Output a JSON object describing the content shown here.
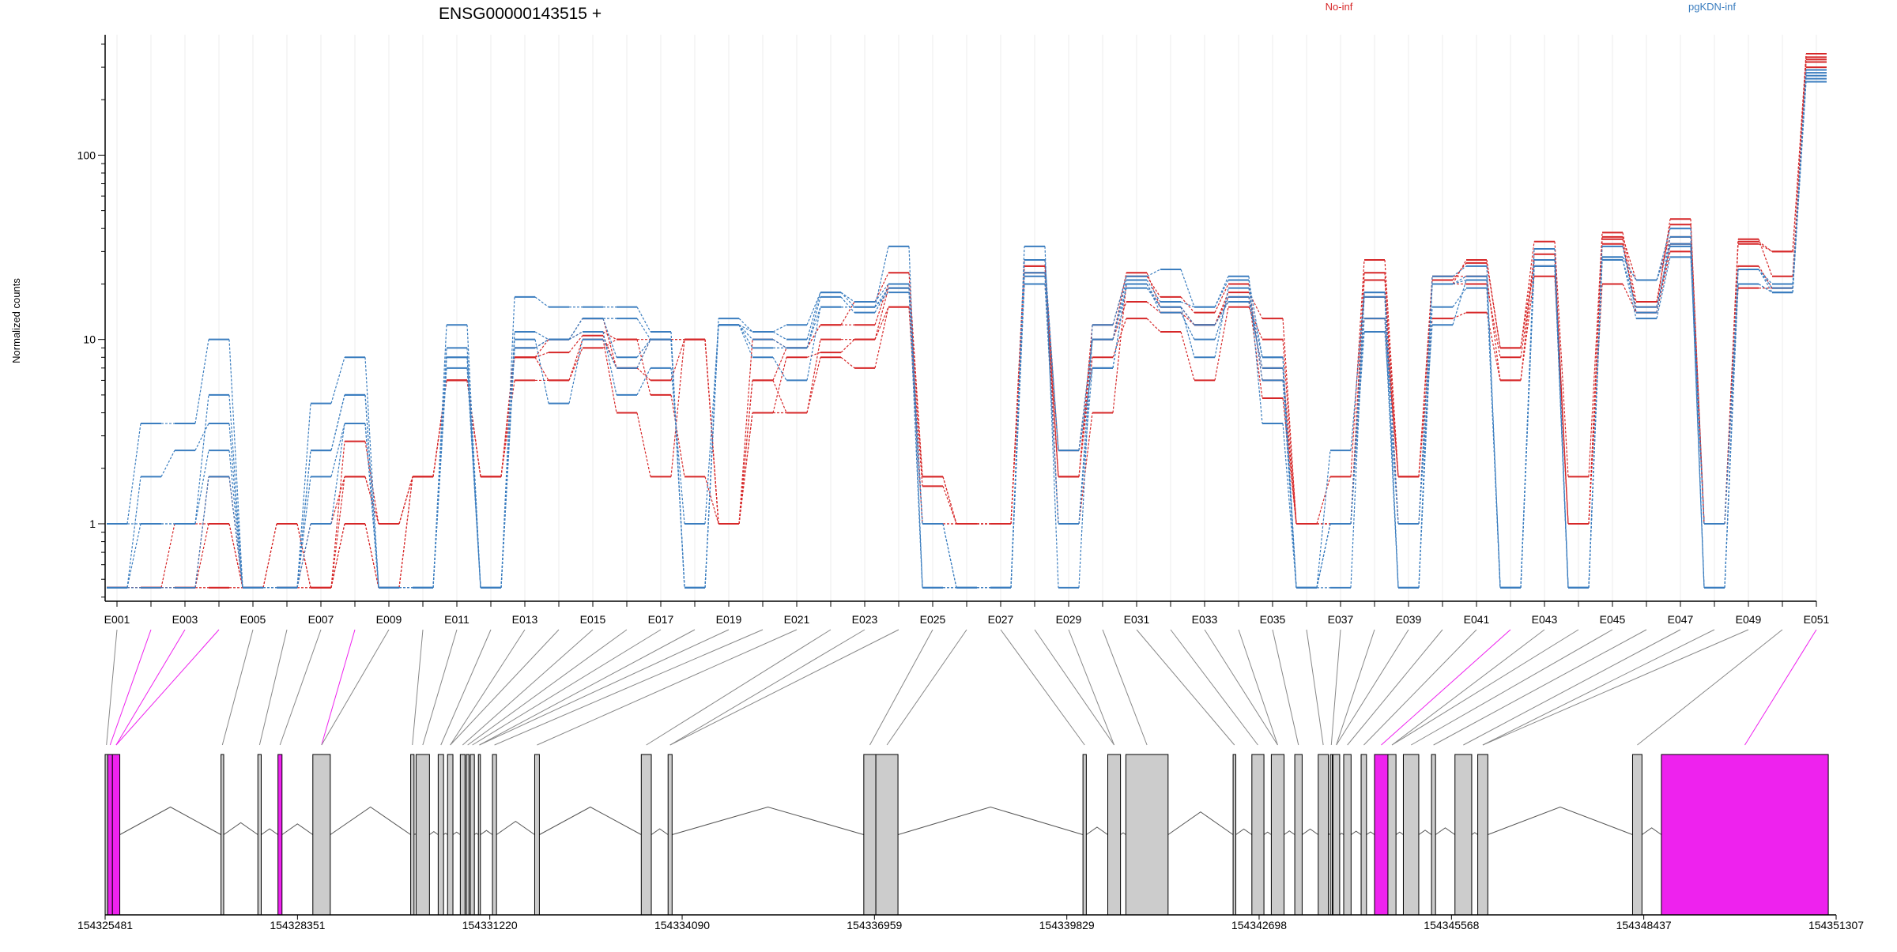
{
  "chart_data": {
    "type": "line",
    "title": "ENSG00000143515 +",
    "ylabel": "Normalized counts",
    "y_scale": "log",
    "ylim": [
      0.38,
      450
    ],
    "y_ticks": [
      1,
      10,
      100
    ],
    "y_tick_labels": [
      "1",
      "10",
      "100"
    ],
    "legend": [
      {
        "name": "No-inf",
        "color": "#d62728"
      },
      {
        "name": "pgKDN-inf",
        "color": "#3a7dbf"
      }
    ],
    "colors": {
      "no_inf": "#d62728",
      "pgkdn_inf": "#3a7dbf",
      "gene_fill": "#cccccc",
      "highlight": "#ee22ee"
    },
    "exons": [
      "E001",
      "E002",
      "E003",
      "E004",
      "E005",
      "E006",
      "E007",
      "E008",
      "E009",
      "E010",
      "E011",
      "E012",
      "E013",
      "E014",
      "E015",
      "E016",
      "E017",
      "E018",
      "E019",
      "E020",
      "E021",
      "E022",
      "E023",
      "E024",
      "E025",
      "E026",
      "E027",
      "E028",
      "E029",
      "E030",
      "E031",
      "E032",
      "E033",
      "E034",
      "E035",
      "E036",
      "E037",
      "E038",
      "E039",
      "E040",
      "E041",
      "E042",
      "E043",
      "E044",
      "E045",
      "E046",
      "E047",
      "E048",
      "E049",
      "E050",
      "E051"
    ],
    "exon_tick_labels": [
      "E001",
      "E003",
      "E005",
      "E007",
      "E009",
      "E011",
      "E013",
      "E015",
      "E017",
      "E019",
      "E021",
      "E023",
      "E025",
      "E027",
      "E029",
      "E031",
      "E033",
      "E035",
      "E037",
      "E039",
      "E041",
      "E043",
      "E045",
      "E047",
      "E049",
      "E051"
    ],
    "highlighted_exons": [
      "E002",
      "E003",
      "E004",
      "E008",
      "E042",
      "E051"
    ],
    "series": [
      {
        "group": "No-inf",
        "values": [
          0.45,
          0.45,
          0.45,
          0.45,
          0.45,
          0.45,
          0.45,
          1.8,
          1.0,
          1.8,
          6.0,
          1.8,
          8.0,
          8.5,
          10.5,
          7.0,
          6.0,
          10.0,
          1.0,
          4.0,
          8.0,
          8.5,
          10.0,
          15.0,
          1.6,
          1.0,
          1.0,
          25.0,
          2.5,
          10.0,
          16.0,
          14.0,
          12.0,
          17.0,
          4.8,
          1.0,
          1.0,
          17.0,
          1.8,
          20.0,
          20.0,
          8.0,
          25.0,
          1.0,
          35.0,
          14.0,
          33.0,
          1.0,
          25.0,
          19.0,
          330.0
        ]
      },
      {
        "group": "No-inf",
        "values": [
          0.45,
          0.45,
          0.45,
          1.0,
          0.45,
          0.45,
          0.45,
          1.0,
          0.45,
          1.8,
          6.0,
          1.8,
          8.0,
          6.0,
          10.0,
          4.0,
          1.8,
          10.0,
          1.0,
          4.0,
          4.0,
          8.0,
          7.0,
          15.0,
          1.0,
          1.0,
          1.0,
          20.0,
          1.8,
          8.0,
          13.0,
          11.0,
          6.0,
          15.0,
          10.0,
          1.0,
          1.0,
          13.0,
          1.8,
          13.0,
          14.0,
          6.0,
          22.0,
          1.0,
          20.0,
          14.0,
          30.0,
          1.0,
          19.0,
          19.0,
          300.0
        ]
      },
      {
        "group": "No-inf",
        "values": [
          0.45,
          0.45,
          0.45,
          1.8,
          0.45,
          1.0,
          0.45,
          2.8,
          1.0,
          1.8,
          6.0,
          1.8,
          8.0,
          10.0,
          11.0,
          10.0,
          5.0,
          1.8,
          1.0,
          6.0,
          4.0,
          10.0,
          10.0,
          19.0,
          1.8,
          1.0,
          1.0,
          27.0,
          1.0,
          4.0,
          20.0,
          15.0,
          12.0,
          18.0,
          13.0,
          1.0,
          1.8,
          27.0,
          1.8,
          20.0,
          27.0,
          9.0,
          34.0,
          1.8,
          38.0,
          16.0,
          42.0,
          1.0,
          35.0,
          22.0,
          340.0
        ]
      },
      {
        "group": "No-inf",
        "values": [
          0.45,
          0.45,
          1.0,
          1.0,
          0.45,
          0.45,
          1.0,
          1.8,
          1.0,
          1.8,
          6.0,
          1.8,
          9.0,
          10.0,
          13.0,
          7.0,
          10.0,
          10.0,
          1.0,
          10.0,
          9.0,
          12.0,
          12.0,
          20.0,
          1.0,
          1.0,
          1.0,
          23.0,
          1.8,
          12.0,
          22.0,
          17.0,
          14.0,
          20.0,
          6.0,
          1.0,
          1.0,
          21.0,
          1.8,
          22.0,
          22.0,
          6.0,
          29.0,
          1.0,
          33.0,
          15.0,
          45.0,
          1.0,
          34.0,
          30.0,
          355.0
        ]
      },
      {
        "group": "No-inf",
        "values": [
          0.45,
          0.45,
          0.45,
          0.45,
          0.45,
          1.0,
          0.45,
          1.0,
          0.45,
          1.8,
          6.0,
          1.8,
          6.0,
          6.0,
          9.0,
          10.0,
          10.0,
          10.0,
          1.0,
          6.0,
          9.0,
          12.0,
          16.0,
          23.0,
          1.8,
          1.0,
          1.0,
          25.0,
          1.8,
          10.0,
          23.0,
          15.0,
          12.0,
          16.0,
          7.0,
          1.0,
          1.0,
          23.0,
          1.0,
          21.0,
          26.0,
          9.0,
          27.0,
          1.0,
          36.0,
          21.0,
          36.0,
          1.0,
          33.0,
          30.0,
          320.0
        ]
      },
      {
        "group": "pgKDN-inf",
        "values": [
          1.0,
          3.5,
          3.5,
          10.0,
          0.45,
          0.45,
          4.5,
          8.0,
          0.45,
          0.45,
          12.0,
          0.45,
          17.0,
          15.0,
          15.0,
          15.0,
          11.0,
          0.45,
          13.0,
          11.0,
          12.0,
          18.0,
          15.0,
          32.0,
          0.45,
          0.45,
          0.45,
          32.0,
          0.45,
          12.0,
          22.0,
          24.0,
          15.0,
          22.0,
          3.5,
          0.45,
          2.5,
          18.0,
          0.45,
          22.0,
          25.0,
          0.45,
          31.0,
          0.45,
          28.0,
          21.0,
          40.0,
          0.45,
          24.0,
          19.0,
          270.0
        ]
      },
      {
        "group": "pgKDN-inf",
        "values": [
          0.45,
          1.0,
          1.0,
          2.5,
          0.45,
          0.45,
          1.0,
          3.5,
          0.45,
          0.45,
          8.0,
          0.45,
          10.0,
          4.5,
          10.0,
          7.0,
          10.0,
          0.45,
          12.0,
          8.0,
          6.0,
          15.0,
          15.0,
          19.0,
          1.0,
          0.45,
          0.45,
          22.0,
          1.0,
          10.0,
          19.0,
          15.0,
          8.0,
          19.0,
          6.0,
          0.45,
          1.0,
          13.0,
          0.45,
          15.0,
          19.0,
          0.45,
          27.0,
          0.45,
          27.0,
          15.0,
          32.0,
          0.45,
          20.0,
          18.0,
          290.0
        ]
      },
      {
        "group": "pgKDN-inf",
        "values": [
          1.0,
          1.0,
          1.0,
          5.0,
          0.45,
          0.45,
          2.5,
          5.0,
          0.45,
          0.45,
          9.0,
          0.45,
          11.0,
          10.0,
          13.0,
          13.0,
          10.0,
          0.45,
          12.0,
          10.0,
          9.0,
          17.0,
          14.0,
          19.0,
          0.45,
          0.45,
          0.45,
          23.0,
          2.5,
          10.0,
          21.0,
          16.0,
          15.0,
          21.0,
          8.0,
          0.45,
          0.45,
          18.0,
          1.0,
          20.0,
          21.0,
          0.45,
          25.0,
          0.45,
          32.0,
          14.0,
          36.0,
          1.0,
          24.0,
          18.0,
          260.0
        ]
      },
      {
        "group": "pgKDN-inf",
        "values": [
          0.45,
          0.45,
          0.45,
          1.8,
          0.45,
          0.45,
          1.8,
          3.5,
          0.45,
          0.45,
          7.0,
          0.45,
          9.0,
          10.0,
          11.0,
          5.0,
          7.0,
          1.0,
          12.0,
          9.0,
          9.0,
          15.0,
          15.0,
          18.0,
          1.0,
          0.45,
          0.45,
          20.0,
          1.0,
          7.0,
          20.0,
          15.0,
          12.0,
          16.0,
          7.0,
          0.45,
          1.0,
          11.0,
          1.0,
          12.0,
          21.0,
          0.45,
          25.0,
          0.45,
          27.0,
          13.0,
          28.0,
          1.0,
          20.0,
          18.0,
          250.0
        ]
      },
      {
        "group": "pgKDN-inf",
        "values": [
          0.45,
          1.8,
          2.5,
          3.5,
          0.45,
          0.45,
          2.5,
          5.0,
          0.45,
          0.45,
          8.0,
          0.45,
          9.0,
          10.0,
          13.0,
          8.0,
          10.0,
          0.45,
          12.0,
          11.0,
          10.0,
          18.0,
          16.0,
          20.0,
          0.45,
          0.45,
          0.45,
          27.0,
          2.5,
          7.0,
          20.0,
          14.0,
          10.0,
          17.0,
          8.0,
          0.45,
          1.0,
          17.0,
          0.45,
          20.0,
          22.0,
          0.45,
          25.0,
          0.45,
          28.0,
          21.0,
          33.0,
          0.45,
          24.0,
          20.0,
          280.0
        ]
      }
    ],
    "gene_model": {
      "genomic_range": [
        154325481,
        154351307
      ],
      "coordinate_ticks": [
        "154325481",
        "154328351",
        "154331220",
        "154334090",
        "154336959",
        "154339829",
        "154342698",
        "154345568",
        "154348437",
        "154351307"
      ],
      "exon_boxes": [
        [
          154325481,
          154325521,
          "normal"
        ],
        [
          154325521,
          154325590,
          "highlight"
        ],
        [
          154325590,
          154325700,
          "highlight"
        ],
        [
          154327210,
          154327250,
          "normal"
        ],
        [
          154327760,
          154327810,
          "normal"
        ],
        [
          154328060,
          154328120,
          "highlight"
        ],
        [
          154328580,
          154328840,
          "normal"
        ],
        [
          154330040,
          154330090,
          "normal"
        ],
        [
          154330120,
          154330320,
          "normal"
        ],
        [
          154330450,
          154330530,
          "normal"
        ],
        [
          154330590,
          154330670,
          "normal"
        ],
        [
          154330780,
          154330850,
          "normal"
        ],
        [
          154330870,
          154330910,
          "normal"
        ],
        [
          154330930,
          154330990,
          "normal"
        ],
        [
          154331050,
          154331080,
          "normal"
        ],
        [
          154331260,
          154331320,
          "normal"
        ],
        [
          154331890,
          154331960,
          "normal"
        ],
        [
          154333480,
          154333630,
          "normal"
        ],
        [
          154333880,
          154333940,
          "normal"
        ],
        [
          154336800,
          154336980,
          "normal"
        ],
        [
          154336980,
          154337310,
          "normal"
        ],
        [
          154340070,
          154340120,
          "normal"
        ],
        [
          154340440,
          154340630,
          "normal"
        ],
        [
          154340710,
          154341340,
          "normal"
        ],
        [
          154342310,
          154342350,
          "normal"
        ],
        [
          154342590,
          154342770,
          "normal"
        ],
        [
          154342880,
          154343070,
          "normal"
        ],
        [
          154343230,
          154343340,
          "normal"
        ],
        [
          154343580,
          154343730,
          "normal"
        ],
        [
          154343760,
          154343790,
          "normal"
        ],
        [
          154343800,
          154343900,
          "normal"
        ],
        [
          154343960,
          154344070,
          "normal"
        ],
        [
          154344220,
          154344300,
          "normal"
        ],
        [
          154344420,
          154344620,
          "highlight"
        ],
        [
          154344620,
          154344740,
          "normal"
        ],
        [
          154344850,
          154345080,
          "normal"
        ],
        [
          154345270,
          154345330,
          "normal"
        ],
        [
          154345620,
          154345870,
          "normal"
        ],
        [
          154345960,
          154346110,
          "normal"
        ],
        [
          154348270,
          154348410,
          "normal"
        ],
        [
          154348700,
          154351190,
          "highlight"
        ]
      ]
    }
  }
}
